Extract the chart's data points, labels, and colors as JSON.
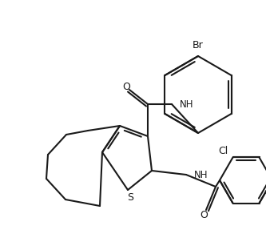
{
  "bg_color": "#ffffff",
  "line_color": "#1a1a1a",
  "label_Br": "Br",
  "label_Cl": "Cl",
  "label_S": "S",
  "label_O1": "O",
  "label_O2": "O",
  "label_NH1": "NH",
  "label_NH2": "NH",
  "figsize": [
    3.33,
    3.12
  ],
  "dpi": 100,
  "lw": 1.5
}
